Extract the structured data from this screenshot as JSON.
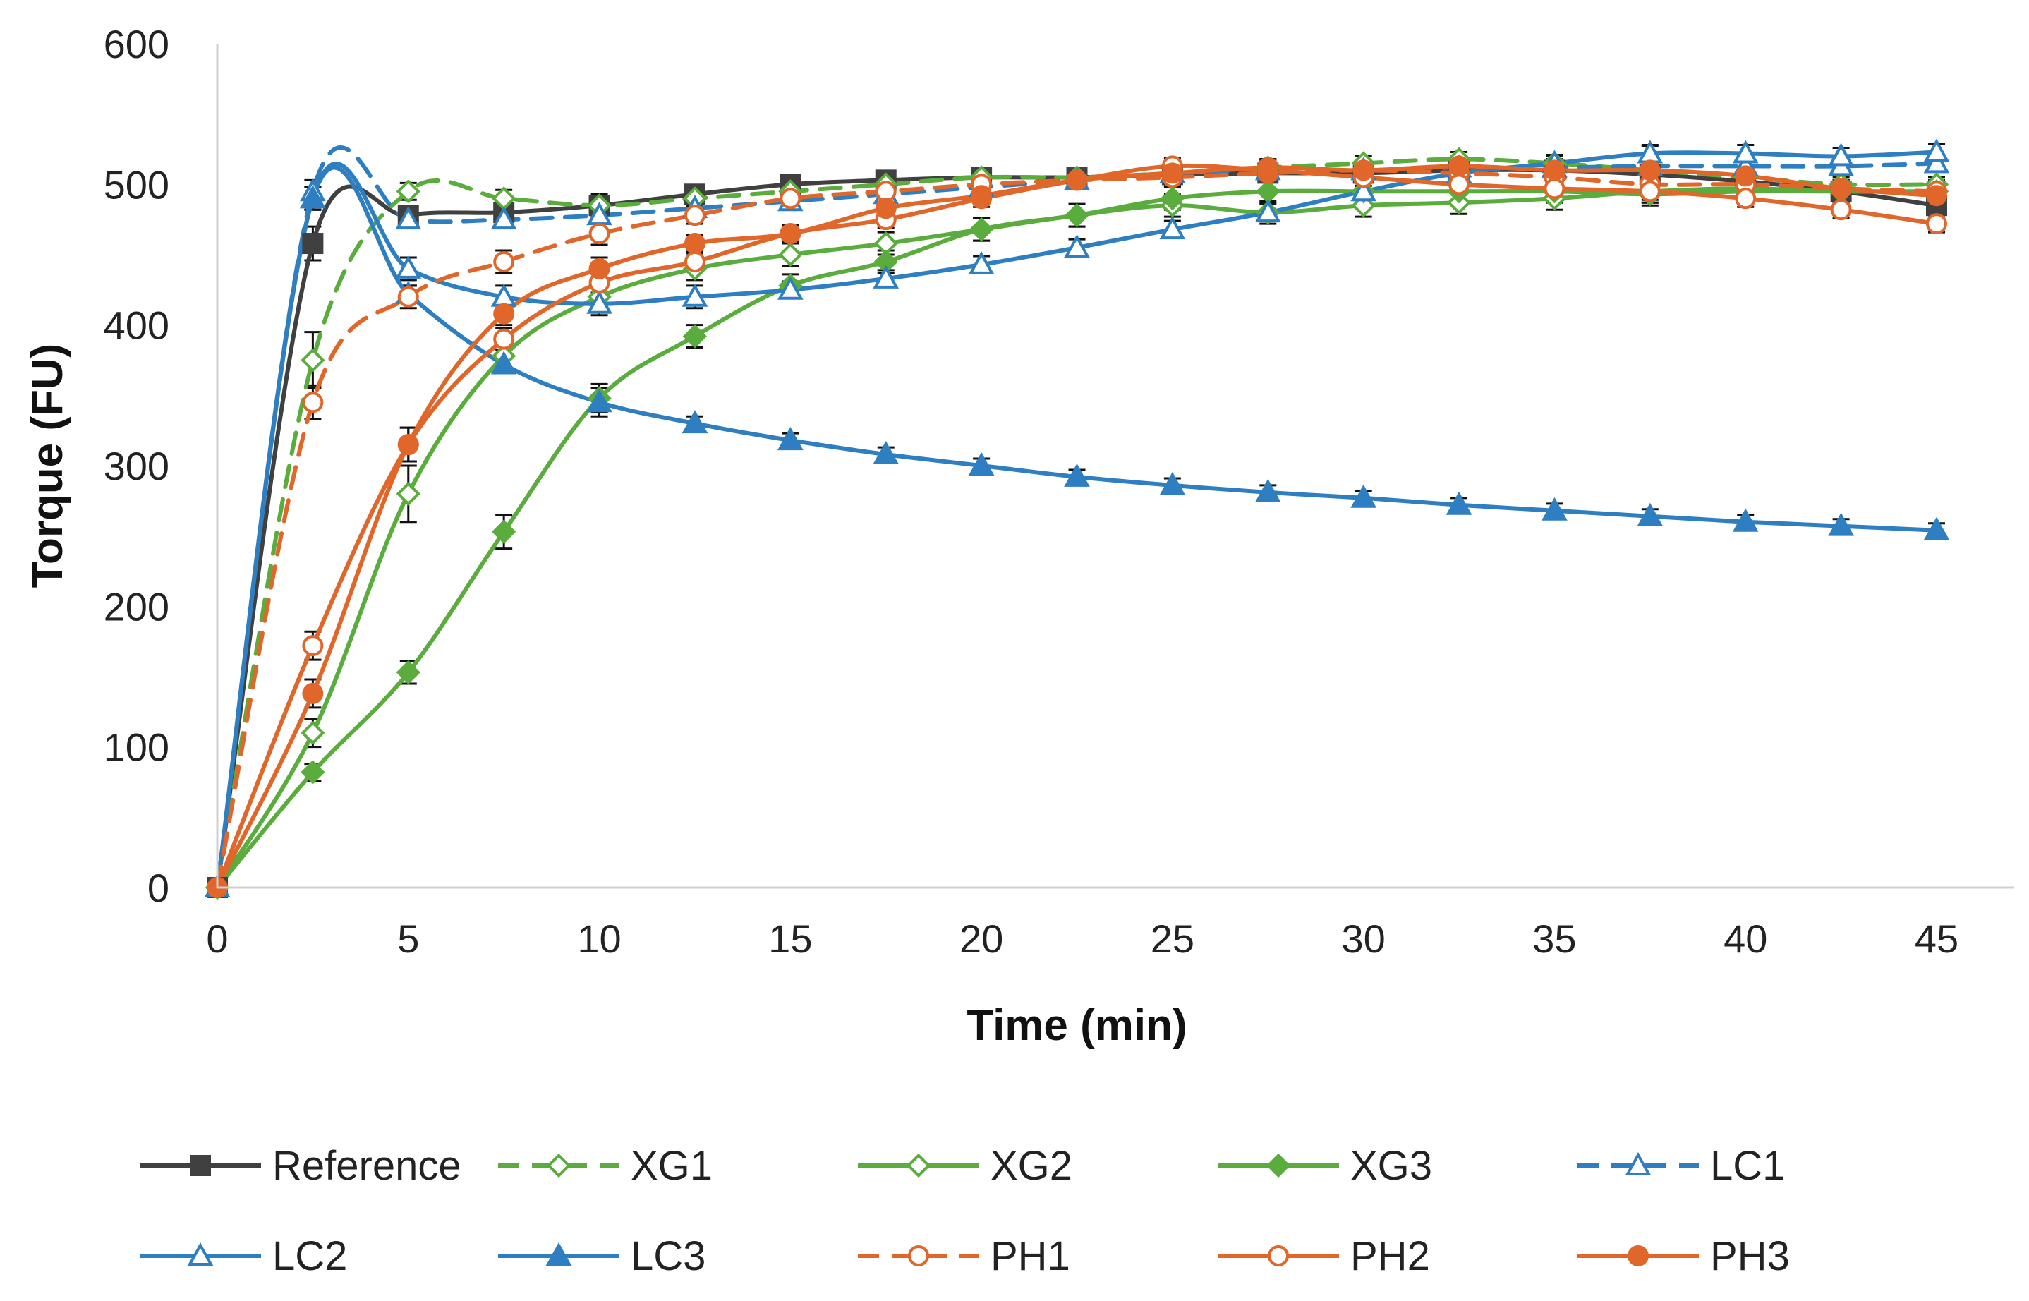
{
  "chart_data": {
    "type": "line",
    "title": "",
    "xlabel": "Time (min)",
    "ylabel": "Torque (FU)",
    "xlim": [
      0,
      45
    ],
    "ylim": [
      0,
      600
    ],
    "xticks": [
      "0",
      "5",
      "10",
      "15",
      "20",
      "25",
      "30",
      "35",
      "40",
      "45"
    ],
    "yticks": [
      "0",
      "100",
      "200",
      "300",
      "400",
      "500",
      "600"
    ],
    "grid": false,
    "legend_position": "bottom",
    "x": [
      0,
      2.5,
      5,
      7.5,
      10,
      12.5,
      15,
      17.5,
      20,
      22.5,
      25,
      27.5,
      30,
      32.5,
      35,
      37.5,
      40,
      42.5,
      45
    ],
    "series": [
      {
        "name": "Reference",
        "color": "#404040",
        "dash": "solid",
        "marker": "square-filled",
        "values": [
          0,
          458,
          478,
          480,
          485,
          493,
          500,
          503,
          505,
          505,
          507,
          508,
          508,
          510,
          510,
          507,
          502,
          495,
          485
        ],
        "errors": [
          0,
          12,
          5,
          8,
          8,
          6,
          5,
          5,
          5,
          6,
          5,
          6,
          6,
          6,
          6,
          20,
          6,
          6,
          6
        ]
      },
      {
        "name": "XG1",
        "color": "#5aad3c",
        "dash": "dashed",
        "marker": "diamond-open",
        "values": [
          0,
          375,
          495,
          490,
          485,
          490,
          495,
          500,
          505,
          505,
          508,
          512,
          515,
          518,
          515,
          510,
          505,
          500,
          500
        ],
        "errors": [
          0,
          20,
          6,
          6,
          5,
          5,
          5,
          5,
          5,
          5,
          5,
          5,
          5,
          5,
          5,
          5,
          5,
          5,
          5
        ]
      },
      {
        "name": "XG2",
        "color": "#5aad3c",
        "dash": "solid",
        "marker": "diamond-open",
        "values": [
          0,
          110,
          280,
          378,
          420,
          440,
          450,
          458,
          468,
          478,
          485,
          480,
          485,
          487,
          490,
          495,
          497,
          495,
          495
        ],
        "errors": [
          0,
          10,
          20,
          10,
          8,
          8,
          8,
          8,
          8,
          8,
          8,
          8,
          8,
          8,
          8,
          8,
          8,
          8,
          8
        ]
      },
      {
        "name": "XG3",
        "color": "#5aad3c",
        "dash": "solid",
        "marker": "diamond-filled",
        "values": [
          0,
          82,
          153,
          253,
          348,
          392,
          428,
          445,
          468,
          478,
          490,
          495,
          495,
          495,
          495,
          493,
          495,
          495,
          495
        ],
        "errors": [
          0,
          6,
          8,
          12,
          10,
          8,
          8,
          8,
          8,
          8,
          8,
          8,
          8,
          8,
          8,
          8,
          8,
          8,
          8
        ]
      },
      {
        "name": "LC1",
        "color": "#2e7fc1",
        "dash": "dashed",
        "marker": "triangle-open",
        "values": [
          0,
          495,
          475,
          475,
          478,
          483,
          488,
          493,
          498,
          503,
          508,
          510,
          510,
          512,
          512,
          513,
          513,
          513,
          515
        ],
        "errors": [
          0,
          8,
          6,
          6,
          6,
          6,
          6,
          6,
          6,
          6,
          6,
          6,
          6,
          6,
          6,
          6,
          6,
          6,
          6
        ]
      },
      {
        "name": "LC2",
        "color": "#2e7fc1",
        "dash": "solid",
        "marker": "triangle-open",
        "values": [
          0,
          490,
          440,
          420,
          415,
          420,
          425,
          433,
          443,
          455,
          468,
          480,
          495,
          508,
          515,
          522,
          522,
          520,
          523
        ],
        "errors": [
          0,
          8,
          8,
          8,
          8,
          8,
          6,
          6,
          6,
          6,
          6,
          6,
          6,
          6,
          6,
          6,
          6,
          6,
          6
        ]
      },
      {
        "name": "LC3",
        "color": "#2e7fc1",
        "dash": "solid",
        "marker": "triangle-filled",
        "values": [
          0,
          490,
          422,
          372,
          345,
          330,
          318,
          308,
          300,
          292,
          286,
          281,
          277,
          272,
          268,
          264,
          260,
          257,
          254
        ],
        "errors": [
          0,
          8,
          6,
          6,
          10,
          5,
          5,
          5,
          5,
          5,
          5,
          5,
          5,
          5,
          5,
          5,
          5,
          5,
          5
        ]
      },
      {
        "name": "PH1",
        "color": "#e0662a",
        "dash": "dashed",
        "marker": "circle-open",
        "values": [
          0,
          345,
          420,
          445,
          465,
          478,
          490,
          495,
          500,
          503,
          505,
          508,
          510,
          508,
          505,
          500,
          500,
          497,
          495
        ],
        "errors": [
          0,
          12,
          8,
          8,
          8,
          6,
          6,
          6,
          6,
          6,
          6,
          6,
          6,
          6,
          6,
          6,
          6,
          6,
          6
        ]
      },
      {
        "name": "PH2",
        "color": "#e0662a",
        "dash": "solid",
        "marker": "circle-open",
        "values": [
          0,
          172,
          315,
          390,
          430,
          445,
          465,
          475,
          490,
          503,
          513,
          510,
          505,
          500,
          497,
          495,
          490,
          482,
          472
        ],
        "errors": [
          0,
          10,
          12,
          8,
          8,
          6,
          6,
          6,
          6,
          6,
          6,
          6,
          6,
          6,
          6,
          6,
          6,
          6,
          6
        ]
      },
      {
        "name": "PH3",
        "color": "#e0662a",
        "dash": "solid",
        "marker": "circle-filled",
        "values": [
          0,
          138,
          315,
          408,
          440,
          458,
          465,
          483,
          492,
          503,
          508,
          512,
          510,
          513,
          510,
          510,
          506,
          497,
          492
        ],
        "errors": [
          0,
          10,
          12,
          8,
          8,
          6,
          6,
          6,
          6,
          6,
          6,
          6,
          6,
          6,
          6,
          6,
          6,
          6,
          6
        ]
      }
    ]
  }
}
